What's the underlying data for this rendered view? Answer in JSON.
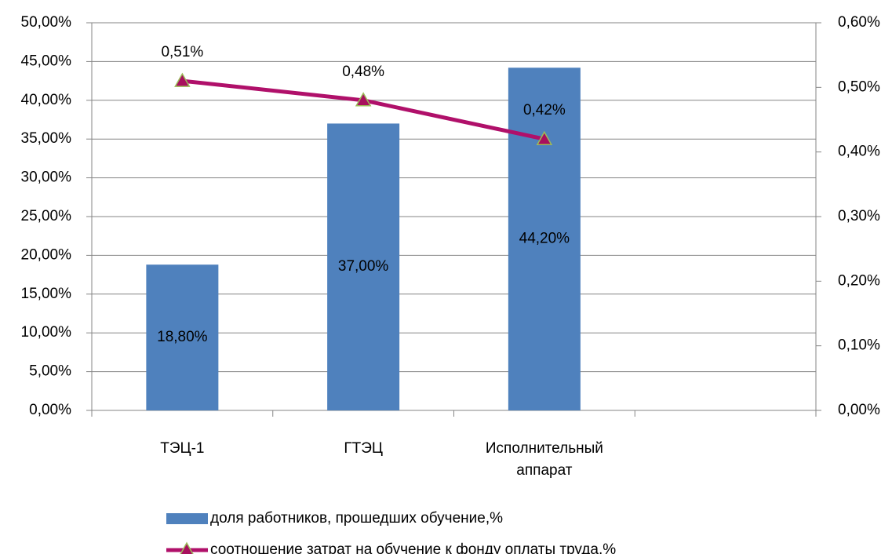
{
  "chart_data": {
    "type": "bar",
    "categories": [
      "ТЭЦ-1",
      "ГТЭЦ",
      "Исполнительный аппарат",
      null
    ],
    "series": [
      {
        "name": "доля работников, прошедших обучение,%",
        "type": "bar",
        "color": "#4f81bd",
        "values": [
          18.8,
          37.0,
          44.2,
          null
        ],
        "value_labels": [
          "18,80%",
          "37,00%",
          "44,20%",
          null
        ]
      },
      {
        "name": "соотношение затрат  на обучение к фонду оплаты труда,%",
        "type": "line",
        "axis": "y2",
        "color": "#b0106a",
        "marker_color": "#a8105e",
        "marker_edge": "#9bbb59",
        "values": [
          0.51,
          0.48,
          0.42,
          null
        ],
        "value_labels": [
          "0,51%",
          "0,48%",
          "0,42%",
          null
        ]
      }
    ],
    "ylim": [
      0,
      50
    ],
    "yticks": [
      {
        "value": 0,
        "label": "0,00%"
      },
      {
        "value": 5,
        "label": "5,00%"
      },
      {
        "value": 10,
        "label": "10,00%"
      },
      {
        "value": 15,
        "label": "15,00%"
      },
      {
        "value": 20,
        "label": "20,00%"
      },
      {
        "value": 25,
        "label": "25,00%"
      },
      {
        "value": 30,
        "label": "30,00%"
      },
      {
        "value": 35,
        "label": "35,00%"
      },
      {
        "value": 40,
        "label": "40,00%"
      },
      {
        "value": 45,
        "label": "45,00%"
      },
      {
        "value": 50,
        "label": "50,00%"
      }
    ],
    "y2lim": [
      0,
      0.6
    ],
    "y2ticks": [
      {
        "value": 0,
        "label": "0,00%"
      },
      {
        "value": 0.1,
        "label": "0,10%"
      },
      {
        "value": 0.2,
        "label": "0,20%"
      },
      {
        "value": 0.3,
        "label": "0,30%"
      },
      {
        "value": 0.4,
        "label": "0,40%"
      },
      {
        "value": 0.5,
        "label": "0,50%"
      },
      {
        "value": 0.6,
        "label": "0,60%"
      }
    ],
    "grid": true,
    "legend": "bottom"
  }
}
